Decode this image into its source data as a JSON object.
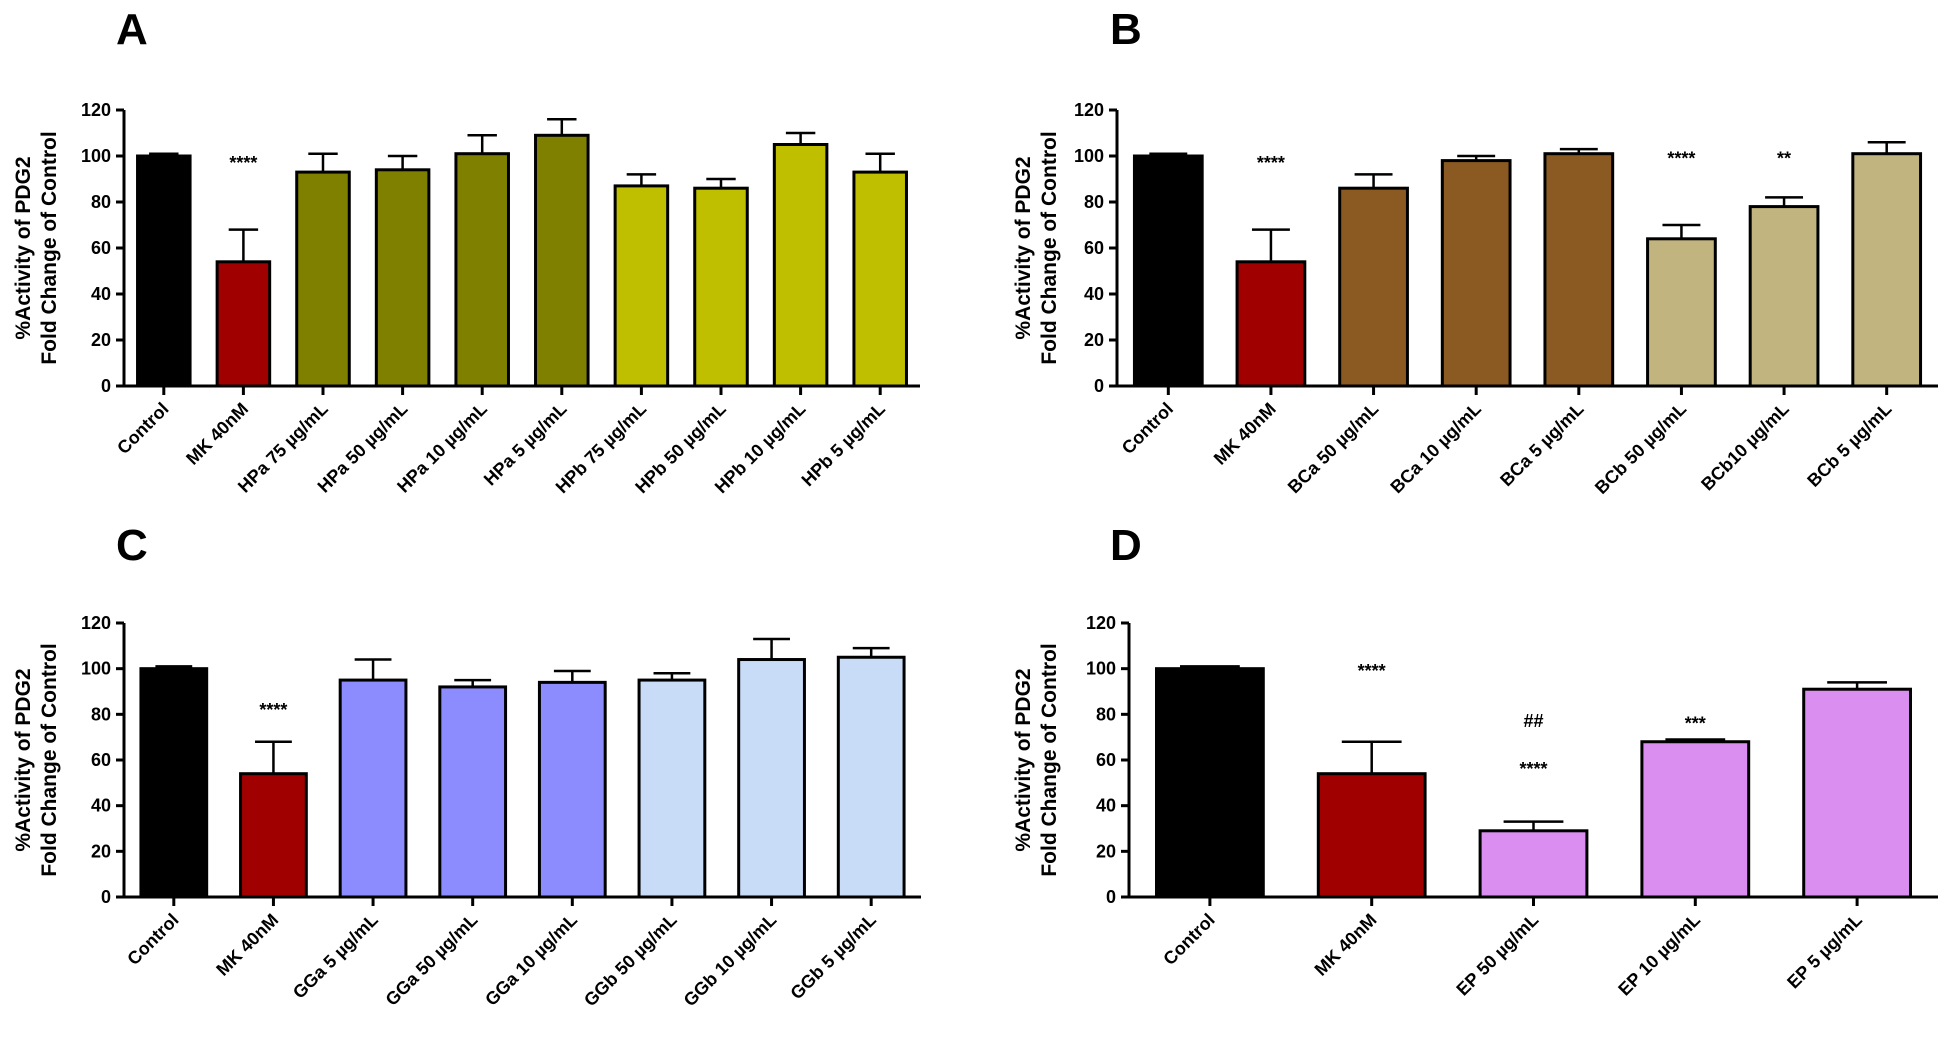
{
  "chart_data": [
    {
      "panel": "A",
      "type": "bar",
      "ylabel": [
        "%Activity of PDG2",
        "Fold Change of Control"
      ],
      "ylim": [
        0,
        120
      ],
      "yticks": [
        0,
        20,
        40,
        60,
        80,
        100,
        120
      ],
      "categories": [
        "Control",
        "MK 40nM",
        "HPa 75 µg/mL",
        "HPa 50 µg/mL",
        "HPa 10 µg/mL",
        "HPa 5 µg/mL",
        "HPb 75 µg/mL",
        "HPb 50 µg/mL",
        "HPb 10 µg/mL",
        "HPb 5 µg/mL"
      ],
      "values": [
        100,
        54,
        93,
        94,
        101,
        109,
        87,
        86,
        105,
        93
      ],
      "errors": [
        1,
        14,
        8,
        6,
        8,
        7,
        5,
        4,
        5,
        8
      ],
      "colors": [
        "#000000",
        "#a00000",
        "#808000",
        "#808000",
        "#808000",
        "#808000",
        "#bfbf00",
        "#bfbf00",
        "#bfbf00",
        "#bfbf00"
      ],
      "annotations": [
        {
          "category": "MK 40nM",
          "text": "****",
          "y": 97
        }
      ]
    },
    {
      "panel": "B",
      "type": "bar",
      "ylabel": [
        "%Activity of PDG2",
        "Fold Change of Control"
      ],
      "ylim": [
        0,
        120
      ],
      "yticks": [
        0,
        20,
        40,
        60,
        80,
        100,
        120
      ],
      "categories": [
        "Control",
        "MK 40nM",
        "BCa 50  µg/mL",
        "BCa 10 µg/mL",
        "BCa 5 µg/mL",
        "BCb 50 µg/mL",
        "BCb10 µg/mL",
        "BCb 5 µg/mL"
      ],
      "values": [
        100,
        54,
        86,
        98,
        101,
        64,
        78,
        101
      ],
      "errors": [
        1,
        14,
        6,
        2,
        2,
        6,
        4,
        5
      ],
      "colors": [
        "#000000",
        "#a00000",
        "#8b5a22",
        "#8b5a22",
        "#8b5a22",
        "#c1b47e",
        "#c1b47e",
        "#c1b47e"
      ],
      "annotations": [
        {
          "category": "MK 40nM",
          "text": "****",
          "y": 97
        },
        {
          "category": "BCb 50 µg/mL",
          "text": "****",
          "y": 99
        },
        {
          "category": "BCb10 µg/mL",
          "text": "**",
          "y": 99
        }
      ]
    },
    {
      "panel": "C",
      "type": "bar",
      "ylabel": [
        "%Activity of PDG2",
        "Fold Change of Control"
      ],
      "ylim": [
        0,
        120
      ],
      "yticks": [
        0,
        20,
        40,
        60,
        80,
        100,
        120
      ],
      "categories": [
        "Control",
        "MK 40nM",
        "GGa 5 µg/mL",
        "GGa 50 µg/mL",
        "GGa 10 µg/mL",
        "GGb 50 µg/mL",
        "GGb 10 µg/mL",
        "GGb 5 µg/mL"
      ],
      "values": [
        100,
        54,
        95,
        92,
        94,
        95,
        104,
        105
      ],
      "errors": [
        1,
        14,
        9,
        3,
        5,
        3,
        9,
        4
      ],
      "colors": [
        "#000000",
        "#a00000",
        "#8c8cff",
        "#8c8cff",
        "#8c8cff",
        "#c8dcf8",
        "#c8dcf8",
        "#c8dcf8"
      ],
      "annotations": [
        {
          "category": "MK 40nM",
          "text": "****",
          "y": 82
        }
      ]
    },
    {
      "panel": "D",
      "type": "bar",
      "ylabel": [
        "%Activity of PDG2",
        "Fold Change of Control"
      ],
      "ylim": [
        0,
        120
      ],
      "yticks": [
        0,
        20,
        40,
        60,
        80,
        100,
        120
      ],
      "categories": [
        "Control",
        "MK 40nM",
        "EP 50 µg/mL",
        "EP 10 µg/mL",
        "EP 5 µg/mL"
      ],
      "values": [
        100,
        54,
        29,
        68,
        91
      ],
      "errors": [
        1,
        14,
        4,
        1,
        3
      ],
      "colors": [
        "#000000",
        "#a00000",
        "#d98ef0",
        "#d98ef0",
        "#d98ef0"
      ],
      "annotations": [
        {
          "category": "MK 40nM",
          "text": "****",
          "y": 99
        },
        {
          "category": "EP 50 µg/mL",
          "text": "##",
          "y": 77
        },
        {
          "category": "EP 50 µg/mL",
          "text": "****",
          "y": 56
        },
        {
          "category": "EP 10 µg/mL",
          "text": "***",
          "y": 76
        }
      ]
    }
  ]
}
